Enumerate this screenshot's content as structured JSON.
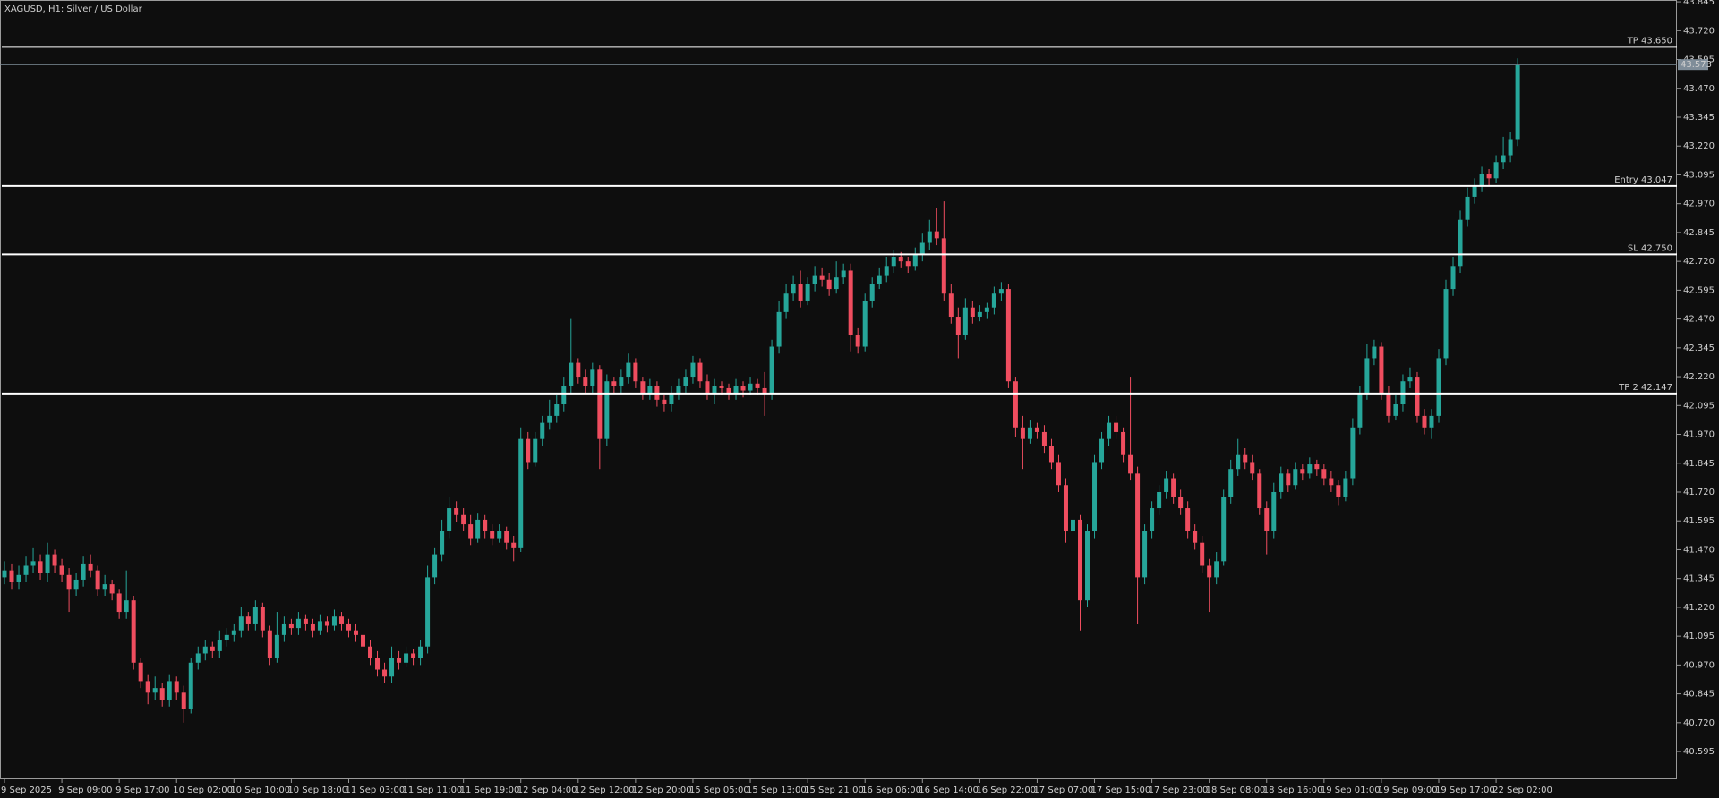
{
  "chart_data": {
    "type": "candlestick",
    "title": "XAGUSD, H1: Silver / US Dollar",
    "categories": [
      "9 Sep 2025",
      null,
      null,
      null,
      null,
      null,
      null,
      null,
      "9 Sep 09:00",
      null,
      null,
      null,
      null,
      null,
      null,
      null,
      "9 Sep 17:00",
      null,
      null,
      null,
      null,
      null,
      null,
      null,
      "10 Sep 02:00",
      null,
      null,
      null,
      null,
      null,
      null,
      null,
      "10 Sep 10:00",
      null,
      null,
      null,
      null,
      null,
      null,
      null,
      "10 Sep 18:00",
      null,
      null,
      null,
      null,
      null,
      null,
      null,
      "11 Sep 03:00",
      null,
      null,
      null,
      null,
      null,
      null,
      null,
      "11 Sep 11:00",
      null,
      null,
      null,
      null,
      null,
      null,
      null,
      "11 Sep 19:00",
      null,
      null,
      null,
      null,
      null,
      null,
      null,
      "12 Sep 04:00",
      null,
      null,
      null,
      null,
      null,
      null,
      null,
      "12 Sep 12:00",
      null,
      null,
      null,
      null,
      null,
      null,
      null,
      "12 Sep 20:00",
      null,
      null,
      null,
      null,
      null,
      null,
      null,
      "15 Sep 05:00",
      null,
      null,
      null,
      null,
      null,
      null,
      null,
      "15 Sep 13:00",
      null,
      null,
      null,
      null,
      null,
      null,
      null,
      "15 Sep 21:00",
      null,
      null,
      null,
      null,
      null,
      null,
      null,
      "16 Sep 06:00",
      null,
      null,
      null,
      null,
      null,
      null,
      null,
      "16 Sep 14:00",
      null,
      null,
      null,
      null,
      null,
      null,
      null,
      "16 Sep 22:00",
      null,
      null,
      null,
      null,
      null,
      null,
      null,
      "17 Sep 07:00",
      null,
      null,
      null,
      null,
      null,
      null,
      null,
      "17 Sep 15:00",
      null,
      null,
      null,
      null,
      null,
      null,
      null,
      "17 Sep 23:00",
      null,
      null,
      null,
      null,
      null,
      null,
      null,
      "18 Sep 08:00",
      null,
      null,
      null,
      null,
      null,
      null,
      null,
      "18 Sep 16:00",
      null,
      null,
      null,
      null,
      null,
      null,
      null,
      "19 Sep 01:00",
      null,
      null,
      null,
      null,
      null,
      null,
      null,
      "19 Sep 09:00",
      null,
      null,
      null,
      null,
      null,
      null,
      null,
      "19 Sep 17:00",
      null,
      null,
      null,
      null,
      null,
      null,
      null,
      "22 Sep 02:00",
      null,
      null,
      null
    ],
    "open": [
      41.35,
      41.38,
      41.33,
      41.36,
      41.4,
      41.42,
      41.37,
      41.45,
      41.4,
      41.36,
      41.3,
      41.34,
      41.41,
      41.38,
      41.3,
      41.32,
      41.28,
      41.2,
      41.25,
      40.98,
      40.9,
      40.85,
      40.87,
      40.82,
      40.9,
      40.85,
      40.78,
      40.98,
      41.02,
      41.05,
      41.03,
      41.08,
      41.1,
      41.12,
      41.18,
      41.15,
      41.22,
      41.12,
      41.0,
      41.1,
      41.15,
      41.13,
      41.17,
      41.15,
      41.12,
      41.16,
      41.14,
      41.18,
      41.15,
      41.12,
      41.1,
      41.05,
      41.0,
      40.95,
      40.92,
      41.0,
      40.98,
      41.02,
      41.0,
      41.05,
      41.35,
      41.45,
      41.55,
      41.65,
      41.62,
      41.58,
      41.52,
      41.6,
      41.55,
      41.52,
      41.55,
      41.5,
      41.48,
      41.95,
      41.85,
      41.95,
      42.02,
      42.05,
      42.1,
      42.18,
      42.28,
      42.22,
      42.18,
      42.25,
      41.95,
      42.2,
      42.18,
      42.22,
      42.28,
      42.2,
      42.15,
      42.18,
      42.12,
      42.1,
      42.15,
      42.18,
      42.22,
      42.28,
      42.2,
      42.15,
      42.18,
      42.17,
      42.15,
      42.18,
      42.16,
      42.19,
      42.17,
      42.15,
      42.35,
      42.5,
      42.58,
      42.62,
      42.55,
      42.62,
      42.66,
      42.64,
      42.6,
      42.65,
      42.68,
      42.4,
      42.35,
      42.55,
      42.62,
      42.66,
      42.7,
      42.74,
      42.72,
      42.7,
      42.75,
      42.8,
      42.85,
      42.82,
      42.58,
      42.48,
      42.4,
      42.52,
      42.48,
      42.5,
      42.52,
      42.58,
      42.6,
      42.2,
      42.0,
      41.95,
      42.0,
      41.98,
      41.92,
      41.85,
      41.75,
      41.55,
      41.6,
      41.25,
      41.55,
      41.85,
      41.95,
      42.02,
      41.98,
      41.88,
      41.8,
      41.35,
      41.55,
      41.65,
      41.72,
      41.78,
      41.7,
      41.65,
      41.55,
      41.5,
      41.4,
      41.35,
      41.42,
      41.7,
      41.82,
      41.88,
      41.85,
      41.8,
      41.65,
      41.55,
      41.72,
      41.8,
      41.75,
      41.82,
      41.8,
      41.84,
      41.82,
      41.78,
      41.75,
      41.7,
      41.78,
      42.0,
      42.15,
      42.3,
      42.35,
      42.15,
      42.05,
      42.1,
      42.2,
      42.22,
      42.05,
      42.0,
      42.05,
      42.3,
      42.6,
      42.7,
      42.9,
      43.0,
      43.05,
      43.1,
      43.08,
      43.15,
      43.18,
      43.25
    ],
    "high": [
      41.42,
      41.41,
      41.4,
      41.44,
      41.48,
      41.45,
      41.5,
      41.47,
      41.43,
      41.39,
      41.37,
      41.44,
      41.45,
      41.4,
      41.36,
      41.34,
      41.3,
      41.38,
      41.27,
      41.0,
      40.93,
      40.92,
      40.89,
      40.93,
      40.92,
      40.88,
      41.0,
      41.05,
      41.08,
      41.07,
      41.12,
      41.13,
      41.15,
      41.22,
      41.2,
      41.25,
      41.24,
      41.14,
      41.2,
      41.18,
      41.17,
      41.2,
      41.19,
      41.17,
      41.19,
      41.18,
      41.21,
      41.2,
      41.17,
      41.15,
      41.12,
      41.08,
      41.03,
      40.98,
      41.05,
      41.03,
      41.05,
      41.04,
      41.08,
      41.4,
      41.48,
      41.6,
      41.7,
      41.68,
      41.65,
      41.62,
      41.63,
      41.62,
      41.58,
      41.58,
      41.57,
      41.53,
      42.0,
      41.98,
      41.98,
      42.05,
      42.12,
      42.14,
      42.22,
      42.47,
      42.3,
      42.25,
      42.28,
      42.27,
      42.23,
      42.22,
      42.25,
      42.32,
      42.3,
      42.22,
      42.21,
      42.2,
      42.14,
      42.18,
      42.21,
      42.25,
      42.31,
      42.3,
      42.23,
      42.21,
      42.2,
      42.19,
      42.21,
      42.2,
      42.22,
      42.21,
      42.24,
      42.38,
      42.55,
      42.62,
      42.66,
      42.68,
      42.65,
      42.7,
      42.69,
      42.67,
      42.72,
      42.71,
      42.71,
      42.43,
      42.58,
      42.65,
      42.69,
      42.74,
      42.77,
      42.76,
      42.74,
      42.78,
      42.84,
      42.9,
      42.95,
      42.98,
      42.62,
      42.52,
      42.56,
      42.55,
      42.53,
      42.54,
      42.61,
      42.63,
      42.62,
      42.22,
      42.05,
      42.03,
      42.02,
      42.01,
      41.95,
      41.88,
      41.78,
      41.65,
      41.62,
      41.58,
      41.88,
      41.98,
      42.05,
      42.05,
      42.0,
      42.22,
      41.83,
      41.58,
      41.68,
      41.75,
      41.81,
      41.8,
      41.73,
      41.68,
      41.58,
      41.53,
      41.43,
      41.46,
      41.73,
      41.86,
      41.95,
      41.91,
      41.88,
      41.82,
      41.68,
      41.76,
      41.83,
      41.82,
      41.85,
      41.84,
      41.87,
      41.86,
      41.84,
      41.81,
      41.77,
      41.81,
      42.04,
      42.18,
      42.36,
      42.38,
      42.37,
      42.18,
      42.14,
      42.23,
      42.26,
      42.24,
      42.08,
      42.08,
      42.34,
      42.64,
      42.74,
      42.94,
      43.04,
      43.08,
      43.13,
      43.12,
      43.18,
      43.26,
      43.28,
      43.6
    ],
    "low": [
      41.32,
      41.3,
      41.3,
      41.33,
      41.37,
      41.34,
      41.33,
      41.37,
      41.33,
      41.2,
      41.27,
      41.31,
      41.35,
      41.27,
      41.27,
      41.25,
      41.17,
      41.17,
      40.95,
      40.87,
      40.8,
      40.82,
      40.79,
      40.79,
      40.82,
      40.72,
      40.76,
      40.95,
      40.99,
      41.0,
      41.0,
      41.05,
      41.07,
      41.09,
      41.12,
      41.12,
      41.09,
      40.97,
      40.98,
      41.07,
      41.1,
      41.1,
      41.12,
      41.09,
      41.1,
      41.11,
      41.12,
      41.12,
      41.09,
      41.07,
      41.02,
      40.97,
      40.92,
      40.89,
      40.89,
      40.95,
      40.96,
      40.97,
      40.97,
      41.02,
      41.32,
      41.42,
      41.52,
      41.59,
      41.55,
      41.49,
      41.5,
      41.52,
      41.49,
      41.5,
      41.47,
      41.42,
      41.46,
      41.82,
      41.83,
      41.92,
      41.99,
      42.02,
      42.07,
      42.15,
      42.19,
      42.15,
      42.15,
      41.82,
      41.92,
      42.15,
      42.15,
      42.19,
      42.17,
      42.12,
      42.12,
      42.09,
      42.07,
      42.07,
      42.12,
      42.15,
      42.19,
      42.17,
      42.12,
      42.1,
      42.14,
      42.12,
      42.12,
      42.13,
      42.14,
      42.14,
      42.05,
      42.12,
      42.32,
      42.47,
      42.55,
      42.52,
      42.53,
      42.59,
      42.61,
      42.57,
      42.58,
      42.62,
      42.33,
      42.32,
      42.33,
      42.52,
      42.6,
      42.63,
      42.67,
      42.69,
      42.67,
      42.68,
      42.72,
      42.77,
      42.79,
      42.55,
      42.45,
      42.3,
      42.38,
      42.45,
      42.46,
      42.47,
      42.49,
      42.55,
      42.17,
      41.96,
      41.82,
      41.93,
      41.95,
      41.89,
      41.82,
      41.72,
      41.5,
      41.52,
      41.12,
      41.22,
      41.52,
      41.82,
      41.92,
      41.95,
      41.85,
      41.77,
      41.15,
      41.32,
      41.52,
      41.62,
      41.69,
      41.67,
      41.62,
      41.52,
      41.47,
      41.37,
      41.2,
      41.32,
      41.4,
      41.67,
      41.79,
      41.82,
      41.77,
      41.62,
      41.45,
      41.52,
      41.69,
      41.72,
      41.73,
      41.77,
      41.78,
      41.79,
      41.75,
      41.72,
      41.66,
      41.68,
      41.75,
      41.97,
      42.12,
      42.27,
      42.12,
      42.02,
      42.03,
      42.07,
      42.17,
      42.02,
      41.97,
      41.95,
      42.02,
      42.27,
      42.57,
      42.67,
      42.87,
      42.97,
      43.02,
      43.05,
      43.06,
      43.12,
      43.15,
      43.22
    ],
    "close": [
      41.38,
      41.33,
      41.36,
      41.4,
      41.42,
      41.37,
      41.45,
      41.4,
      41.36,
      41.3,
      41.34,
      41.41,
      41.38,
      41.3,
      41.32,
      41.28,
      41.2,
      41.25,
      40.98,
      40.9,
      40.85,
      40.87,
      40.82,
      40.9,
      40.85,
      40.78,
      40.98,
      41.02,
      41.05,
      41.03,
      41.08,
      41.1,
      41.12,
      41.18,
      41.15,
      41.22,
      41.12,
      41.0,
      41.1,
      41.15,
      41.13,
      41.17,
      41.15,
      41.12,
      41.16,
      41.14,
      41.18,
      41.15,
      41.12,
      41.1,
      41.05,
      41.0,
      40.95,
      40.92,
      41.0,
      40.98,
      41.02,
      41.0,
      41.05,
      41.35,
      41.45,
      41.55,
      41.65,
      41.62,
      41.58,
      41.52,
      41.6,
      41.55,
      41.52,
      41.55,
      41.5,
      41.48,
      41.95,
      41.85,
      41.95,
      42.02,
      42.05,
      42.1,
      42.18,
      42.28,
      42.22,
      42.18,
      42.25,
      41.95,
      42.2,
      42.18,
      42.22,
      42.28,
      42.2,
      42.15,
      42.18,
      42.12,
      42.1,
      42.15,
      42.18,
      42.22,
      42.28,
      42.2,
      42.15,
      42.18,
      42.17,
      42.15,
      42.18,
      42.16,
      42.19,
      42.17,
      42.15,
      42.35,
      42.5,
      42.58,
      42.62,
      42.55,
      42.62,
      42.66,
      42.64,
      42.6,
      42.65,
      42.68,
      42.4,
      42.35,
      42.55,
      42.62,
      42.66,
      42.7,
      42.74,
      42.72,
      42.7,
      42.75,
      42.8,
      42.85,
      42.82,
      42.58,
      42.48,
      42.4,
      42.52,
      42.48,
      42.5,
      42.52,
      42.58,
      42.6,
      42.2,
      42.0,
      41.95,
      42.0,
      41.98,
      41.92,
      41.85,
      41.75,
      41.55,
      41.6,
      41.25,
      41.55,
      41.85,
      41.95,
      42.02,
      41.98,
      41.88,
      41.8,
      41.35,
      41.55,
      41.65,
      41.72,
      41.78,
      41.7,
      41.65,
      41.55,
      41.5,
      41.4,
      41.35,
      41.42,
      41.7,
      41.82,
      41.88,
      41.85,
      41.8,
      41.65,
      41.55,
      41.72,
      41.8,
      41.75,
      41.82,
      41.8,
      41.84,
      41.82,
      41.78,
      41.75,
      41.7,
      41.78,
      42.0,
      42.15,
      42.3,
      42.35,
      42.15,
      42.05,
      42.1,
      42.2,
      42.22,
      42.05,
      42.0,
      42.05,
      42.3,
      42.6,
      42.7,
      42.9,
      43.0,
      43.05,
      43.1,
      43.08,
      43.15,
      43.18,
      43.25,
      43.57
    ],
    "up_color": "#26a69a",
    "down_color": "#ef4d5f",
    "ylim": [
      40.475,
      43.853
    ],
    "yticks": [
      43.845,
      {
        "value": 43.72,
        "label": "43.720"
      },
      43.595,
      {
        "value": 43.47,
        "label": "43.470"
      },
      43.345,
      {
        "value": 43.22,
        "label": "43.220"
      },
      43.095,
      {
        "value": 42.97,
        "label": "42.970"
      },
      42.845,
      {
        "value": 42.72,
        "label": "42.720"
      },
      42.595,
      {
        "value": 42.47,
        "label": "42.470"
      },
      42.345,
      {
        "value": 42.22,
        "label": "42.220"
      },
      42.095,
      {
        "value": 41.97,
        "label": "41.970"
      },
      41.845,
      {
        "value": 41.72,
        "label": "41.720"
      },
      41.595,
      {
        "value": 41.47,
        "label": "41.470"
      },
      41.345,
      {
        "value": 41.22,
        "label": "41.220"
      },
      41.095,
      {
        "value": 40.97,
        "label": "40.970"
      },
      40.845,
      {
        "value": 40.72,
        "label": "40.720"
      },
      40.595
    ],
    "levels": [
      {
        "label": "TP 43.650",
        "value": 43.65
      },
      {
        "label": "Entry 43.047",
        "value": 43.047
      },
      {
        "label": "SL 42.750",
        "value": 42.75
      },
      {
        "label": "TP 2 42.147",
        "value": 42.147
      }
    ],
    "last_price": 43.573
  }
}
